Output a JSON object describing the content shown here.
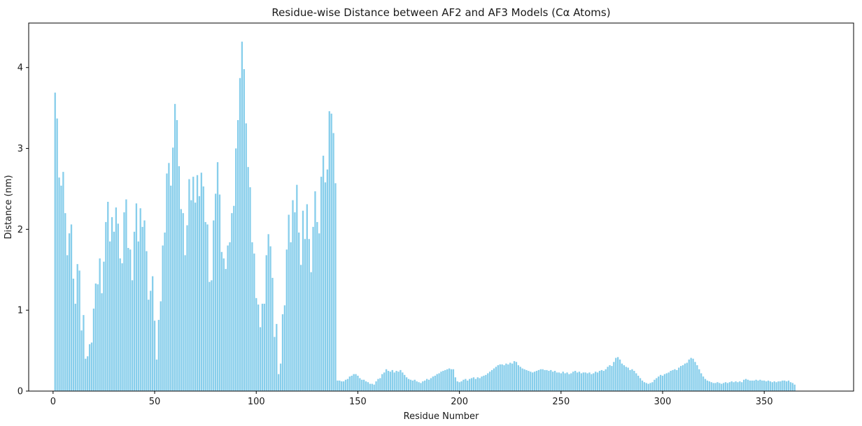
{
  "chart_data": {
    "type": "bar",
    "title": "Residue-wise Distance between AF2 and AF3 Models (Cα Atoms)",
    "xlabel": "Residue Number",
    "ylabel": "Distance (nm)",
    "xlim": [
      -12,
      394
    ],
    "ylim": [
      0,
      4.55
    ],
    "xticks": [
      0,
      50,
      100,
      150,
      200,
      250,
      300,
      350
    ],
    "yticks": [
      0,
      1,
      2,
      3,
      4
    ],
    "grid": false,
    "bar_color": "#87ceeb",
    "series": [
      {
        "x_start": 1,
        "values": [
          3.69,
          3.37,
          2.64,
          2.54,
          2.71,
          2.2,
          1.68,
          1.95,
          2.06,
          1.39,
          1.08,
          1.57,
          1.49,
          0.75,
          0.94,
          0.4,
          0.43,
          0.58,
          0.6,
          1.02,
          1.33,
          1.32,
          1.64,
          1.21,
          1.6,
          2.09,
          2.34,
          1.85,
          2.15,
          1.97,
          2.27,
          2.07,
          1.64,
          1.58,
          2.21,
          2.37,
          1.77,
          1.75,
          1.37,
          1.97,
          2.32,
          1.85,
          2.26,
          2.03,
          2.11,
          1.73,
          1.13,
          1.24,
          1.42,
          0.87,
          0.39,
          0.88,
          1.11,
          1.8,
          1.96,
          2.69,
          2.82,
          2.54,
          3.01,
          3.55,
          3.35,
          2.78,
          2.25,
          2.2,
          1.68,
          2.05,
          2.62,
          2.36,
          2.65,
          2.33,
          2.67,
          2.41,
          2.7,
          2.53,
          2.09,
          2.06,
          1.35,
          1.37,
          2.11,
          2.44,
          2.83,
          2.43,
          1.72,
          1.64,
          1.51,
          1.8,
          1.84,
          2.2,
          2.29,
          3.0,
          3.35,
          3.87,
          4.32,
          3.98,
          3.31,
          2.77,
          2.52,
          1.84,
          1.7,
          1.15,
          1.07,
          0.79,
          1.08,
          1.08,
          1.68,
          1.94,
          1.79,
          1.4,
          0.67,
          0.83,
          0.21,
          0.34,
          0.95,
          1.06,
          1.75,
          2.18,
          1.84,
          2.36,
          2.21,
          2.55,
          1.96,
          1.56,
          2.23,
          1.88,
          2.31,
          1.88,
          1.47,
          2.03,
          2.47,
          2.09,
          1.95,
          2.65,
          2.91,
          2.58,
          2.74,
          3.46,
          3.43,
          3.19,
          2.57,
          0.13,
          0.13,
          0.12,
          0.12,
          0.14,
          0.15,
          0.18,
          0.19,
          0.21,
          0.21,
          0.19,
          0.16,
          0.14,
          0.14,
          0.12,
          0.11,
          0.09,
          0.09,
          0.08,
          0.12,
          0.15,
          0.16,
          0.21,
          0.23,
          0.27,
          0.25,
          0.24,
          0.26,
          0.23,
          0.25,
          0.24,
          0.26,
          0.23,
          0.2,
          0.17,
          0.15,
          0.14,
          0.13,
          0.14,
          0.12,
          0.11,
          0.1,
          0.12,
          0.13,
          0.15,
          0.14,
          0.16,
          0.18,
          0.19,
          0.21,
          0.22,
          0.24,
          0.25,
          0.26,
          0.27,
          0.28,
          0.27,
          0.27,
          0.17,
          0.12,
          0.11,
          0.12,
          0.14,
          0.15,
          0.13,
          0.15,
          0.16,
          0.17,
          0.15,
          0.17,
          0.16,
          0.18,
          0.19,
          0.2,
          0.22,
          0.24,
          0.26,
          0.28,
          0.3,
          0.32,
          0.33,
          0.33,
          0.32,
          0.34,
          0.33,
          0.35,
          0.34,
          0.37,
          0.36,
          0.32,
          0.3,
          0.28,
          0.27,
          0.26,
          0.25,
          0.24,
          0.23,
          0.24,
          0.25,
          0.26,
          0.27,
          0.27,
          0.26,
          0.26,
          0.25,
          0.26,
          0.24,
          0.25,
          0.23,
          0.23,
          0.22,
          0.24,
          0.22,
          0.23,
          0.21,
          0.22,
          0.24,
          0.25,
          0.23,
          0.24,
          0.22,
          0.23,
          0.23,
          0.22,
          0.23,
          0.21,
          0.22,
          0.24,
          0.23,
          0.25,
          0.26,
          0.25,
          0.27,
          0.3,
          0.32,
          0.31,
          0.36,
          0.41,
          0.42,
          0.39,
          0.34,
          0.32,
          0.3,
          0.29,
          0.26,
          0.27,
          0.25,
          0.22,
          0.19,
          0.16,
          0.13,
          0.11,
          0.1,
          0.09,
          0.1,
          0.11,
          0.14,
          0.16,
          0.18,
          0.2,
          0.19,
          0.21,
          0.22,
          0.23,
          0.25,
          0.26,
          0.27,
          0.26,
          0.29,
          0.31,
          0.32,
          0.34,
          0.35,
          0.39,
          0.41,
          0.4,
          0.36,
          0.32,
          0.27,
          0.22,
          0.18,
          0.15,
          0.13,
          0.12,
          0.11,
          0.1,
          0.1,
          0.11,
          0.1,
          0.09,
          0.1,
          0.11,
          0.1,
          0.11,
          0.12,
          0.11,
          0.12,
          0.11,
          0.12,
          0.11,
          0.14,
          0.15,
          0.14,
          0.13,
          0.13,
          0.13,
          0.14,
          0.13,
          0.14,
          0.13,
          0.13,
          0.12,
          0.13,
          0.12,
          0.11,
          0.12,
          0.11,
          0.12,
          0.12,
          0.13,
          0.13,
          0.12,
          0.13,
          0.11,
          0.1,
          0.08
        ]
      }
    ]
  }
}
